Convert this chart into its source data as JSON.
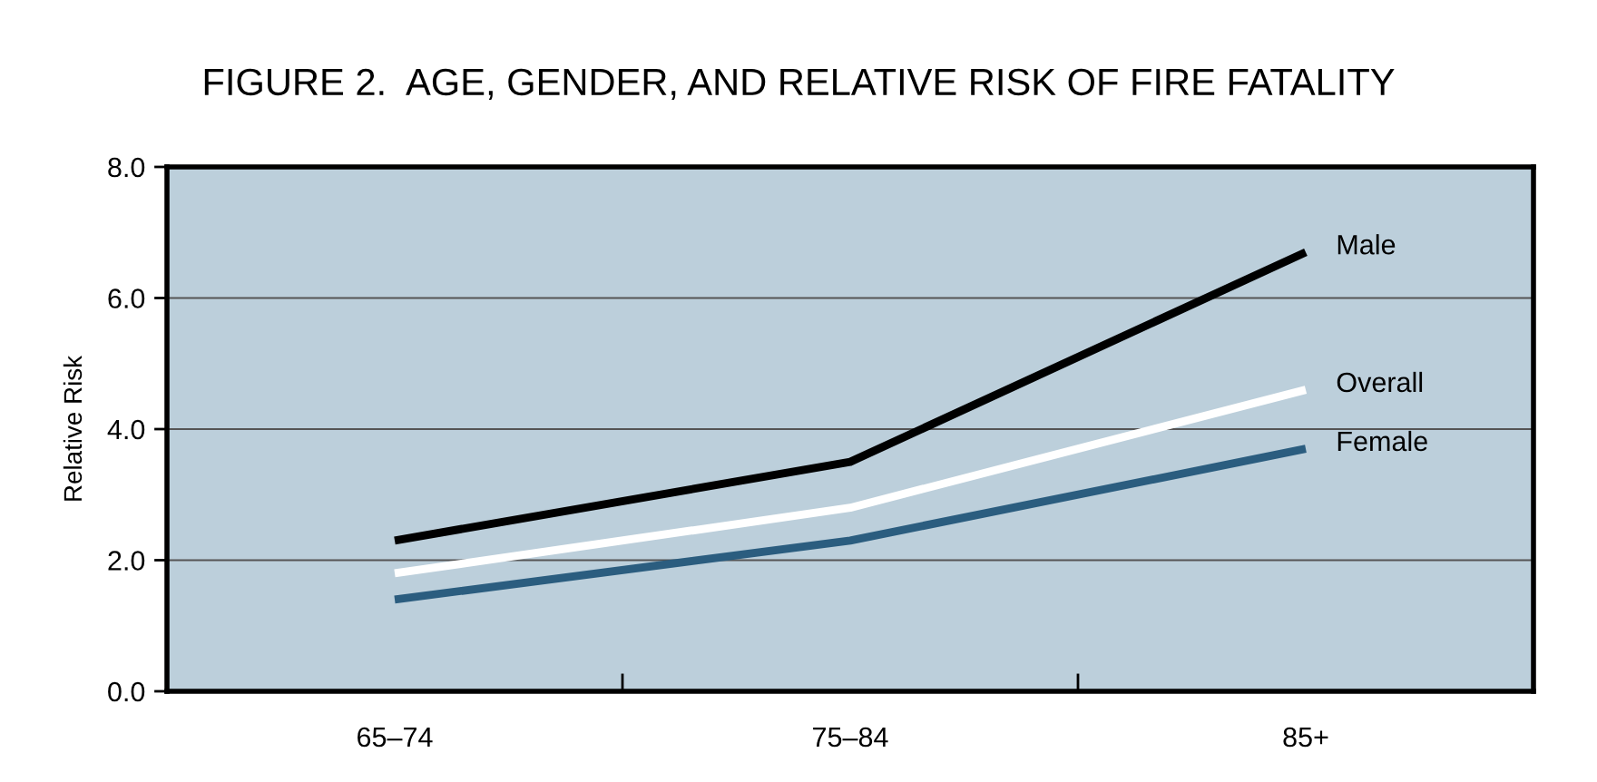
{
  "chart_data": {
    "type": "line",
    "title": "FIGURE 2.  AGE, GENDER, AND RELATIVE RISK OF FIRE FATALITY",
    "ylabel": "Relative Risk",
    "categories": [
      "65–74",
      "75–84",
      "85+"
    ],
    "series": [
      {
        "name": "Male",
        "color": "#000000",
        "values": [
          2.3,
          3.5,
          6.7
        ]
      },
      {
        "name": "Overall",
        "color": "#ffffff",
        "values": [
          1.8,
          2.8,
          4.6
        ]
      },
      {
        "name": "Female",
        "color": "#2b5d7f",
        "values": [
          1.4,
          2.3,
          3.7
        ]
      }
    ],
    "ylim": [
      0,
      8
    ],
    "yticks": [
      {
        "value": 0,
        "label": "0.0"
      },
      {
        "value": 2,
        "label": "2.0"
      },
      {
        "value": 4,
        "label": "4.0"
      },
      {
        "value": 6,
        "label": "6.0"
      },
      {
        "value": 8,
        "label": "8.0"
      }
    ],
    "grid": "y",
    "legend": false,
    "marker": "none",
    "line_style": "solid"
  }
}
